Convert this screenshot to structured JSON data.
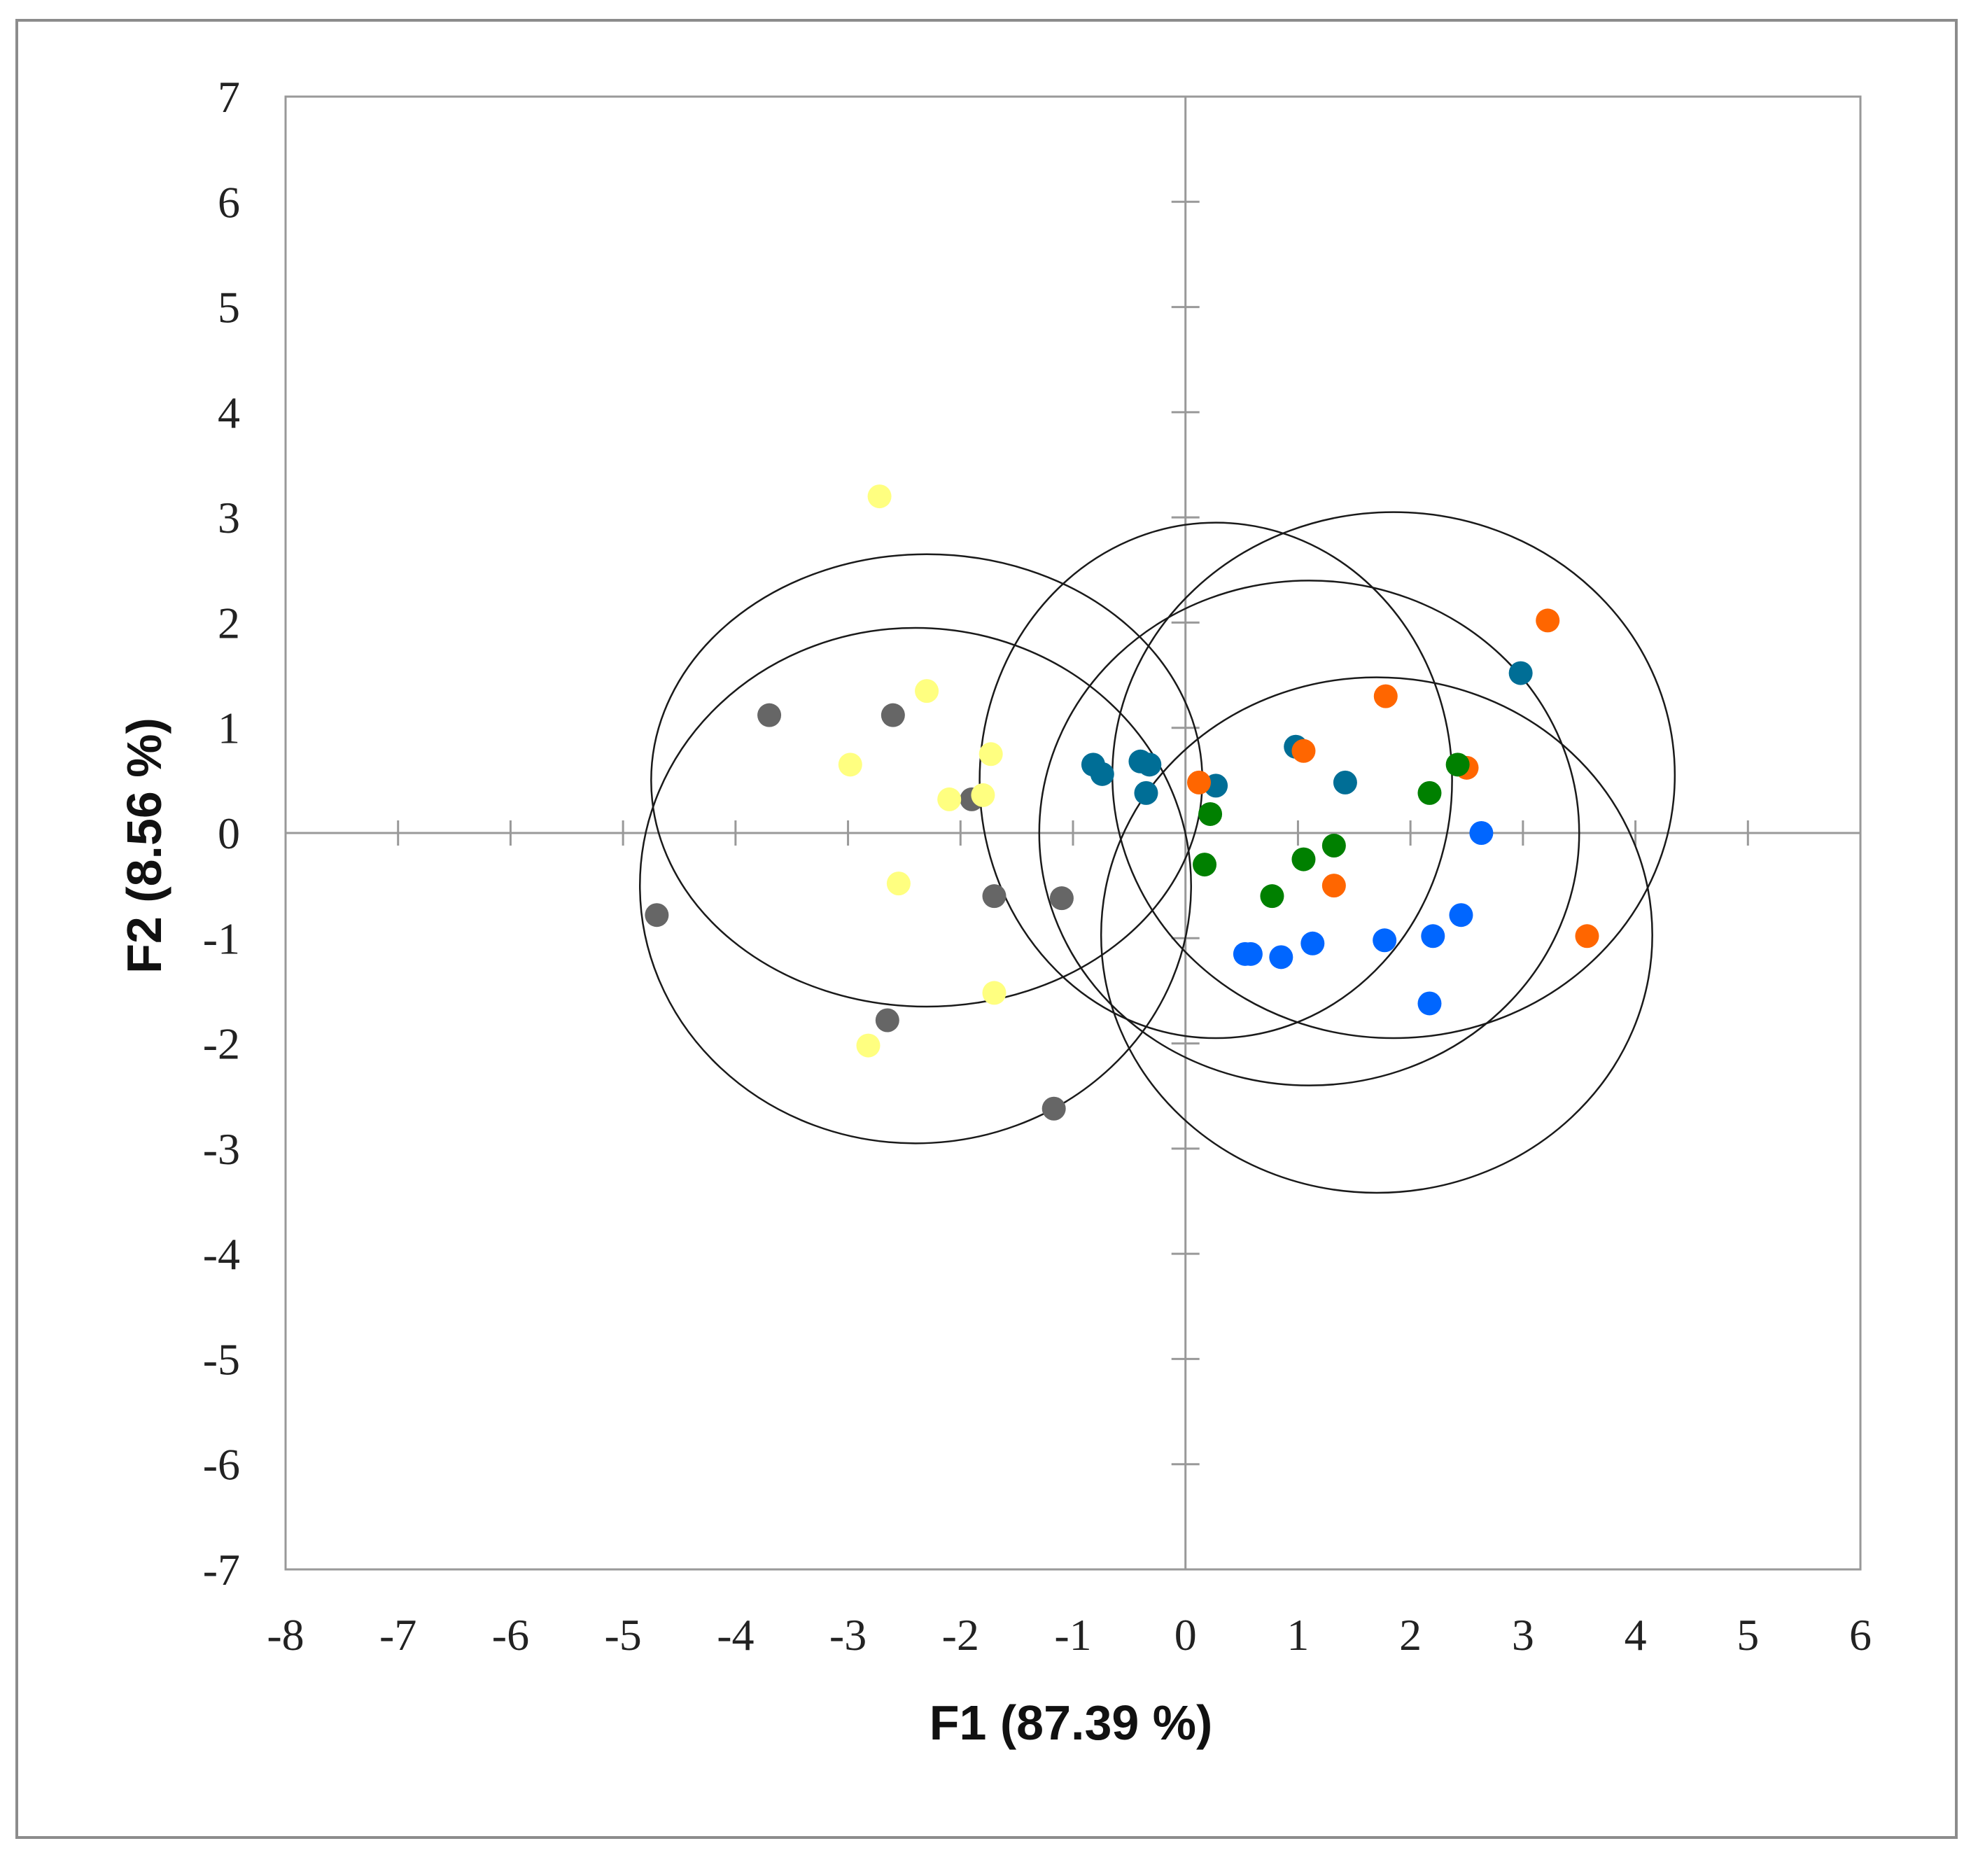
{
  "chart_data": {
    "type": "scatter",
    "title": "",
    "xlabel": "F1 (87.39 %)",
    "ylabel": "F2 (8.56 %)",
    "xlim": [
      -8,
      6
    ],
    "ylim": [
      -7,
      7
    ],
    "x_ticks": [
      "-8",
      "-7",
      "-6",
      "-5",
      "-4",
      "-3",
      "-2",
      "-1",
      "0",
      "1",
      "2",
      "3",
      "4",
      "5",
      "6"
    ],
    "y_ticks": [
      "7",
      "6",
      "5",
      "4",
      "3",
      "2",
      "1",
      "0",
      "-1",
      "-2",
      "-3",
      "-4",
      "-5",
      "-6",
      "-7"
    ],
    "grid": false,
    "legend": "none",
    "series": [
      {
        "color": "#666666",
        "points": [
          [
            -3.7,
            1.12
          ],
          [
            -2.6,
            1.12
          ],
          [
            -1.9,
            0.32
          ],
          [
            -1.7,
            -0.6
          ],
          [
            -1.1,
            -0.62
          ],
          [
            -4.7,
            -0.78
          ],
          [
            -2.65,
            -1.78
          ],
          [
            -1.17,
            -2.62
          ]
        ]
      },
      {
        "color": "#ffff80",
        "points": [
          [
            -2.72,
            3.2
          ],
          [
            -2.3,
            1.35
          ],
          [
            -1.73,
            0.75
          ],
          [
            -2.98,
            0.65
          ],
          [
            -2.1,
            0.32
          ],
          [
            -1.8,
            0.36
          ],
          [
            -2.55,
            -0.48
          ],
          [
            -1.7,
            -1.52
          ],
          [
            -2.82,
            -2.02
          ]
        ]
      },
      {
        "color": "#006e96",
        "points": [
          [
            2.98,
            1.52
          ],
          [
            0.98,
            0.82
          ],
          [
            -0.82,
            0.65
          ],
          [
            -0.74,
            0.56
          ],
          [
            -0.4,
            0.68
          ],
          [
            -0.32,
            0.65
          ],
          [
            -0.35,
            0.38
          ],
          [
            0.27,
            0.45
          ],
          [
            1.42,
            0.48
          ]
        ]
      },
      {
        "color": "#ff6600",
        "points": [
          [
            3.22,
            2.02
          ],
          [
            1.78,
            1.3
          ],
          [
            1.05,
            0.78
          ],
          [
            0.12,
            0.48
          ],
          [
            2.5,
            0.62
          ],
          [
            1.32,
            -0.5
          ],
          [
            3.57,
            -0.98
          ]
        ]
      },
      {
        "color": "#008000",
        "points": [
          [
            2.42,
            0.65
          ],
          [
            2.17,
            0.38
          ],
          [
            0.22,
            0.18
          ],
          [
            1.32,
            -0.12
          ],
          [
            0.17,
            -0.3
          ],
          [
            1.05,
            -0.25
          ],
          [
            0.77,
            -0.6
          ]
        ]
      },
      {
        "color": "#0066ff",
        "points": [
          [
            2.63,
            0.0
          ],
          [
            2.45,
            -0.78
          ],
          [
            2.2,
            -0.98
          ],
          [
            1.77,
            -1.02
          ],
          [
            1.13,
            -1.05
          ],
          [
            0.85,
            -1.18
          ],
          [
            0.53,
            -1.15
          ],
          [
            0.58,
            -1.15
          ],
          [
            2.17,
            -1.62
          ]
        ]
      }
    ],
    "ellipses": [
      {
        "cx": -2.3,
        "cy": 0.5,
        "rx": 2.45,
        "ry": 2.15
      },
      {
        "cx": -2.4,
        "cy": -0.5,
        "rx": 2.45,
        "ry": 2.45
      },
      {
        "cx": 0.27,
        "cy": 0.5,
        "rx": 2.1,
        "ry": 2.45
      },
      {
        "cx": 1.1,
        "cy": 0.0,
        "rx": 2.4,
        "ry": 2.4
      },
      {
        "cx": 1.85,
        "cy": 0.55,
        "rx": 2.5,
        "ry": 2.5
      },
      {
        "cx": 1.7,
        "cy": -0.97,
        "rx": 2.45,
        "ry": 2.45
      }
    ]
  }
}
